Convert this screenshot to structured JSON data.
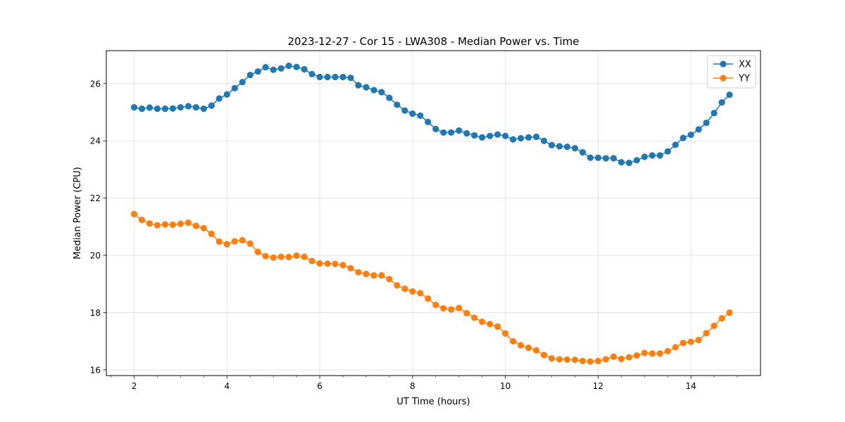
{
  "chart_data": {
    "type": "line",
    "title": "2023-12-27 - Cor 15 - LWA308 - Median Power vs. Time",
    "xlabel": "UT Time (hours)",
    "ylabel": "Median Power (CPU)",
    "xlim": [
      1.4,
      15.5
    ],
    "ylim": [
      15.8,
      27.15
    ],
    "xticks": [
      2,
      4,
      6,
      8,
      10,
      12,
      14
    ],
    "yticks": [
      16,
      18,
      20,
      22,
      24,
      26
    ],
    "grid": true,
    "legend_position": "top-right",
    "series": [
      {
        "name": "XX",
        "color": "#1f77b4",
        "x": [
          2.0,
          2.167,
          2.333,
          2.5,
          2.667,
          2.833,
          3.0,
          3.167,
          3.333,
          3.5,
          3.667,
          3.833,
          4.0,
          4.167,
          4.333,
          4.5,
          4.667,
          4.833,
          5.0,
          5.167,
          5.333,
          5.5,
          5.667,
          5.833,
          6.0,
          6.167,
          6.333,
          6.5,
          6.667,
          6.833,
          7.0,
          7.167,
          7.333,
          7.5,
          7.667,
          7.833,
          8.0,
          8.167,
          8.333,
          8.5,
          8.667,
          8.833,
          9.0,
          9.167,
          9.333,
          9.5,
          9.667,
          9.833,
          10.0,
          10.167,
          10.333,
          10.5,
          10.667,
          10.833,
          11.0,
          11.167,
          11.333,
          11.5,
          11.667,
          11.833,
          12.0,
          12.167,
          12.333,
          12.5,
          12.667,
          12.833,
          13.0,
          13.167,
          13.333,
          13.5,
          13.667,
          13.833,
          14.0,
          14.167,
          14.333,
          14.5,
          14.667,
          14.833
        ],
        "y": [
          25.17,
          25.12,
          25.16,
          25.12,
          25.12,
          25.13,
          25.17,
          25.21,
          25.17,
          25.12,
          25.23,
          25.48,
          25.62,
          25.84,
          26.05,
          26.3,
          26.42,
          26.57,
          26.48,
          26.53,
          26.62,
          26.58,
          26.5,
          26.33,
          26.23,
          26.23,
          26.23,
          26.23,
          26.2,
          25.94,
          25.87,
          25.77,
          25.7,
          25.5,
          25.26,
          25.06,
          24.95,
          24.88,
          24.66,
          24.41,
          24.29,
          24.29,
          24.36,
          24.26,
          24.19,
          24.12,
          24.17,
          24.22,
          24.17,
          24.05,
          24.09,
          24.12,
          24.14,
          24.0,
          23.85,
          23.81,
          23.79,
          23.74,
          23.6,
          23.41,
          23.41,
          23.39,
          23.39,
          23.25,
          23.23,
          23.32,
          23.44,
          23.49,
          23.49,
          23.63,
          23.86,
          24.1,
          24.21,
          24.4,
          24.63,
          24.97,
          25.34,
          25.61
        ]
      },
      {
        "name": "YY",
        "color": "#ff7f0e",
        "x": [
          2.0,
          2.167,
          2.333,
          2.5,
          2.667,
          2.833,
          3.0,
          3.167,
          3.333,
          3.5,
          3.667,
          3.833,
          4.0,
          4.167,
          4.333,
          4.5,
          4.667,
          4.833,
          5.0,
          5.167,
          5.333,
          5.5,
          5.667,
          5.833,
          6.0,
          6.167,
          6.333,
          6.5,
          6.667,
          6.833,
          7.0,
          7.167,
          7.333,
          7.5,
          7.667,
          7.833,
          8.0,
          8.167,
          8.333,
          8.5,
          8.667,
          8.833,
          9.0,
          9.167,
          9.333,
          9.5,
          9.667,
          9.833,
          10.0,
          10.167,
          10.333,
          10.5,
          10.667,
          10.833,
          11.0,
          11.167,
          11.333,
          11.5,
          11.667,
          11.833,
          12.0,
          12.167,
          12.333,
          12.5,
          12.667,
          12.833,
          13.0,
          13.167,
          13.333,
          13.5,
          13.667,
          13.833,
          14.0,
          14.167,
          14.333,
          14.5,
          14.667,
          14.833
        ],
        "y": [
          21.44,
          21.24,
          21.11,
          21.05,
          21.08,
          21.07,
          21.1,
          21.14,
          21.03,
          20.95,
          20.75,
          20.48,
          20.39,
          20.49,
          20.53,
          20.41,
          20.12,
          19.97,
          19.92,
          19.95,
          19.94,
          19.99,
          19.95,
          19.8,
          19.72,
          19.71,
          19.7,
          19.66,
          19.55,
          19.41,
          19.35,
          19.3,
          19.3,
          19.17,
          18.95,
          18.83,
          18.74,
          18.68,
          18.49,
          18.27,
          18.15,
          18.11,
          18.16,
          17.98,
          17.82,
          17.68,
          17.6,
          17.51,
          17.27,
          17.0,
          16.86,
          16.77,
          16.68,
          16.52,
          16.4,
          16.37,
          16.36,
          16.35,
          16.31,
          16.29,
          16.31,
          16.37,
          16.46,
          16.38,
          16.44,
          16.5,
          16.59,
          16.57,
          16.57,
          16.65,
          16.79,
          16.94,
          16.98,
          17.04,
          17.28,
          17.54,
          17.8,
          18.0
        ]
      }
    ]
  }
}
